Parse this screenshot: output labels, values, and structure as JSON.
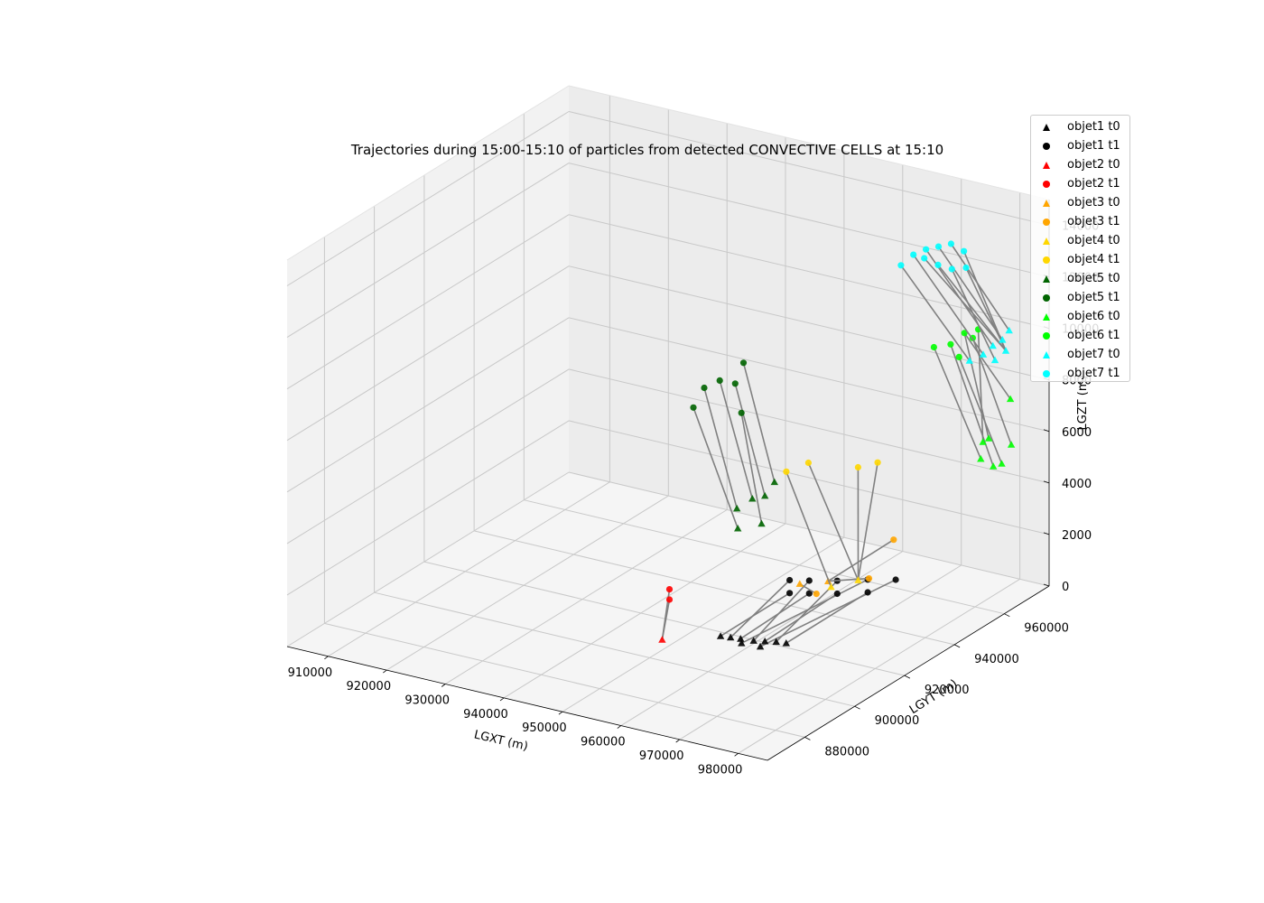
{
  "chart_data": {
    "type": "scatter",
    "subtype": "3d-trajectories",
    "title": "Trajectories during 15:00-15:10 of particles from detected CONVECTIVE CELLS at 15:10",
    "xlabel": "LGXT (m)",
    "ylabel": "LGYT (m)",
    "zlabel": "LGZT (m)",
    "xlim": [
      903000,
      985000
    ],
    "ylim": [
      865000,
      978000
    ],
    "zlim": [
      0,
      15000
    ],
    "x_ticks": [
      "910000",
      "920000",
      "930000",
      "940000",
      "950000",
      "960000",
      "970000",
      "980000"
    ],
    "y_ticks": [
      "880000",
      "900000",
      "920000",
      "940000",
      "960000"
    ],
    "z_ticks": [
      "0",
      "2000",
      "4000",
      "6000",
      "8000",
      "10000",
      "12000",
      "14000"
    ],
    "x_tick_values": [
      910000,
      920000,
      930000,
      940000,
      950000,
      960000,
      970000,
      980000
    ],
    "y_tick_values": [
      880000,
      900000,
      920000,
      940000,
      960000
    ],
    "z_tick_values": [
      0,
      2000,
      4000,
      6000,
      8000,
      10000,
      12000,
      14000
    ],
    "grid": true,
    "legend_position": "top-right",
    "trajectory_line_color": "#808080",
    "series": [
      {
        "name": "objet1",
        "color": "#000000",
        "t0": [
          [
            957000,
            912000,
            500
          ],
          [
            958500,
            912500,
            500
          ],
          [
            960000,
            913000,
            500
          ],
          [
            962000,
            913500,
            500
          ],
          [
            963500,
            914500,
            500
          ],
          [
            965000,
            915500,
            500
          ],
          [
            966500,
            916000,
            500
          ],
          [
            961000,
            911000,
            500
          ],
          [
            964000,
            911500,
            500
          ]
        ],
        "t1": [
          [
            959000,
            935000,
            900
          ],
          [
            959000,
            935000,
            1400
          ],
          [
            961500,
            937000,
            900
          ],
          [
            961500,
            937000,
            1400
          ],
          [
            965000,
            940000,
            900
          ],
          [
            965000,
            940000,
            1400
          ],
          [
            968500,
            944000,
            900
          ],
          [
            968500,
            944000,
            1400
          ],
          [
            972000,
            947000,
            1400
          ]
        ]
      },
      {
        "name": "objet2",
        "color": "#ff0000",
        "t0": [
          [
            950000,
            905000,
            400
          ]
        ],
        "t1": [
          [
            947000,
            915000,
            1200
          ],
          [
            947000,
            915000,
            1600
          ]
        ]
      },
      {
        "name": "objet3",
        "color": "#ffa500",
        "t0": [
          [
            962000,
            932000,
            1600
          ],
          [
            966000,
            934000,
            1800
          ]
        ],
        "t1": [
          [
            964000,
            934000,
            1200
          ],
          [
            970000,
            941000,
            1700
          ],
          [
            972500,
            945000,
            3100
          ]
        ]
      },
      {
        "name": "objet4",
        "color": "#ffd700",
        "t0": [
          [
            966500,
            934000,
            1600
          ],
          [
            969000,
            939000,
            1700
          ]
        ],
        "t1": [
          [
            958000,
            936000,
            5500
          ],
          [
            960500,
            939000,
            5800
          ],
          [
            966000,
            946000,
            5500
          ],
          [
            968500,
            948000,
            5700
          ]
        ]
      },
      {
        "name": "objet5",
        "color": "#006400",
        "t0": [
          [
            950000,
            935000,
            3700
          ],
          [
            952000,
            936500,
            4100
          ],
          [
            953500,
            938000,
            4200
          ],
          [
            954500,
            939500,
            4700
          ],
          [
            951000,
            933000,
            3100
          ],
          [
            954000,
            935500,
            3300
          ]
        ],
        "t1": [
          [
            944000,
            936000,
            8000
          ],
          [
            946000,
            937500,
            8300
          ],
          [
            948000,
            939000,
            8200
          ],
          [
            949000,
            940000,
            9000
          ],
          [
            943000,
            934000,
            7300
          ],
          [
            949500,
            938000,
            7200
          ]
        ]
      },
      {
        "name": "objet6",
        "color": "#00ff00",
        "t0": [
          [
            981000,
            960000,
            5800
          ],
          [
            982500,
            961500,
            5500
          ],
          [
            983500,
            962500,
            5600
          ],
          [
            984500,
            964000,
            6300
          ],
          [
            982000,
            958500,
            6600
          ],
          [
            983500,
            966000,
            7900
          ],
          [
            981500,
            962000,
            6500
          ]
        ],
        "t1": [
          [
            973000,
            960000,
            9700
          ],
          [
            975000,
            962000,
            9800
          ],
          [
            976000,
            963000,
            9300
          ],
          [
            977500,
            965000,
            10000
          ],
          [
            978000,
            966000,
            10300
          ],
          [
            976500,
            964000,
            10200
          ]
        ]
      },
      {
        "name": "objet7",
        "color": "#00ffff",
        "t0": [
          [
            978000,
            962500,
            9300
          ],
          [
            979500,
            964500,
            9500
          ],
          [
            980500,
            966000,
            9800
          ],
          [
            981500,
            967500,
            10000
          ],
          [
            982000,
            969000,
            10300
          ],
          [
            980000,
            968000,
            9100
          ],
          [
            981000,
            970000,
            9400
          ]
        ],
        "t1": [
          [
            968000,
            958500,
            12700
          ],
          [
            969500,
            960000,
            13100
          ],
          [
            971000,
            961500,
            13300
          ],
          [
            972500,
            963000,
            13400
          ],
          [
            974000,
            964500,
            13500
          ],
          [
            973500,
            966000,
            12400
          ],
          [
            970500,
            962000,
            12900
          ],
          [
            972000,
            964000,
            12600
          ],
          [
            975500,
            967000,
            12500
          ],
          [
            974500,
            968500,
            13000
          ]
        ]
      }
    ]
  },
  "legend": {
    "items": [
      {
        "label": "objet1 t0",
        "marker": "triangle",
        "color": "#000000"
      },
      {
        "label": "objet1 t1",
        "marker": "circle",
        "color": "#000000"
      },
      {
        "label": "objet2 t0",
        "marker": "triangle",
        "color": "#ff0000"
      },
      {
        "label": "objet2 t1",
        "marker": "circle",
        "color": "#ff0000"
      },
      {
        "label": "objet3 t0",
        "marker": "triangle",
        "color": "#ffa500"
      },
      {
        "label": "objet3 t1",
        "marker": "circle",
        "color": "#ffa500"
      },
      {
        "label": "objet4 t0",
        "marker": "triangle",
        "color": "#ffd700"
      },
      {
        "label": "objet4 t1",
        "marker": "circle",
        "color": "#ffd700"
      },
      {
        "label": "objet5 t0",
        "marker": "triangle",
        "color": "#006400"
      },
      {
        "label": "objet5 t1",
        "marker": "circle",
        "color": "#006400"
      },
      {
        "label": "objet6 t0",
        "marker": "triangle",
        "color": "#00ff00"
      },
      {
        "label": "objet6 t1",
        "marker": "circle",
        "color": "#00ff00"
      },
      {
        "label": "objet7 t0",
        "marker": "triangle",
        "color": "#00ffff"
      },
      {
        "label": "objet7 t1",
        "marker": "circle",
        "color": "#00ffff"
      }
    ]
  }
}
